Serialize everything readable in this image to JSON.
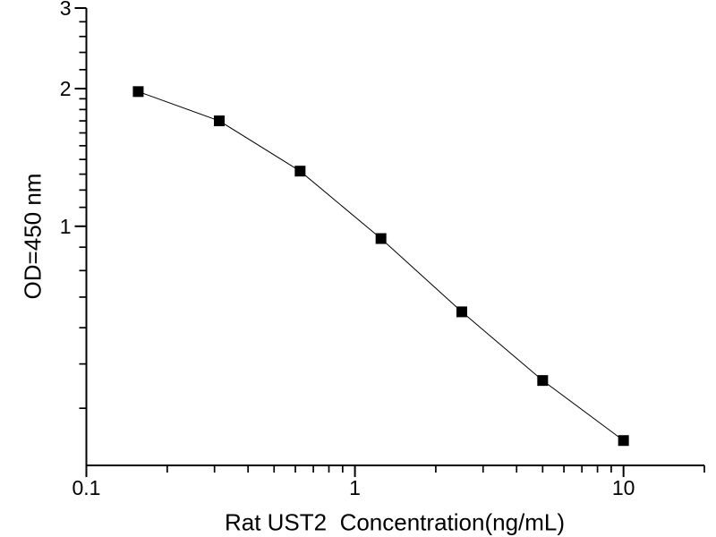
{
  "chart_data": {
    "type": "line",
    "title": "",
    "xlabel": "Rat UST2  Concentration(ng/mL)",
    "ylabel": "OD=450 nm",
    "x_scale": "log",
    "y_scale": "log",
    "xlim": [
      0.1,
      20
    ],
    "ylim": [
      0.3,
      3
    ],
    "grid": false,
    "legend": "none",
    "x_major_ticks": [
      0.1,
      1,
      10
    ],
    "x_major_labels": [
      "0.1",
      "1",
      "10"
    ],
    "x_minor_ticks": [
      0.2,
      0.3,
      0.4,
      0.5,
      0.6,
      0.7,
      0.8,
      0.9,
      2,
      3,
      4,
      5,
      6,
      7,
      8,
      9,
      20
    ],
    "y_major_ticks": [
      1,
      2,
      3
    ],
    "y_major_labels": [
      "1",
      "2",
      "3"
    ],
    "y_minor_ticks": [
      0.4,
      0.5,
      0.6,
      0.7,
      0.8,
      0.9,
      1.1,
      1.2,
      1.3,
      1.4,
      1.5,
      1.6,
      1.7,
      1.8,
      1.9,
      2.2,
      2.4,
      2.6,
      2.8
    ],
    "series": [
      {
        "name": "standard_curve",
        "x": [
          0.156,
          0.3125,
          0.625,
          1.25,
          2.5,
          5,
          10
        ],
        "y": [
          1.97,
          1.7,
          1.32,
          0.94,
          0.65,
          0.46,
          0.34
        ]
      }
    ],
    "marker": "filled-square",
    "marker_color": "#000000",
    "line_color": "#000000",
    "axis_color": "#000000",
    "background": "#ffffff"
  }
}
